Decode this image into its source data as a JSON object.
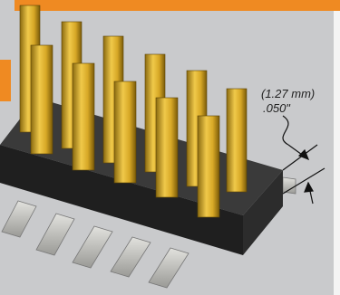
{
  "annotation": {
    "metric": "(1.27 mm)",
    "imperial": ".050\""
  }
}
